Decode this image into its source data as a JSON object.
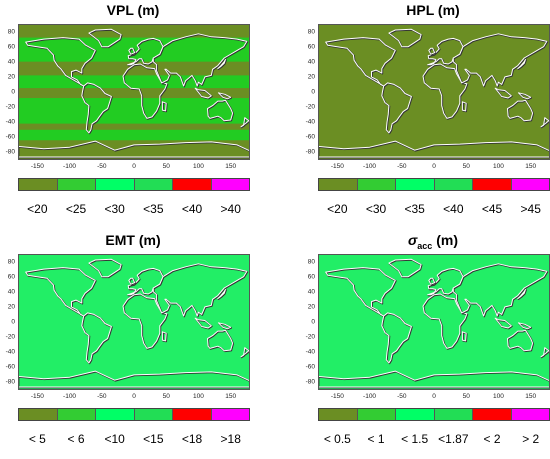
{
  "chart_data": [
    {
      "type": "heatmap",
      "title": "VPL (m)",
      "title_main": "VPL (m)",
      "title_sub": "",
      "title_unit": "",
      "xlim": [
        -180,
        180
      ],
      "ylim": [
        -90,
        90
      ],
      "xticks": [
        "-150",
        "-100",
        "-50",
        "0",
        "50",
        "100",
        "150"
      ],
      "yticks": [
        "80",
        "60",
        "40",
        "20",
        "0",
        "-20",
        "-40",
        "-60",
        "-80"
      ],
      "legend": {
        "labels": [
          "<20",
          "<25",
          "<30",
          "<35",
          "<40",
          ">40"
        ],
        "colors": [
          "#6b8e23",
          "#33cc33",
          "#00ff66",
          "#22dd55",
          "#ff0000",
          "#ff00ff"
        ]
      },
      "background_color": "#6b8e23",
      "bands": [
        {
          "lat_from": 90,
          "lat_to": 72,
          "color": "#6b8e23"
        },
        {
          "lat_from": 72,
          "lat_to": 40,
          "color": "#22cc22"
        },
        {
          "lat_from": 40,
          "lat_to": 22,
          "color": "#6b8e23"
        },
        {
          "lat_from": 22,
          "lat_to": 5,
          "color": "#22cc22"
        },
        {
          "lat_from": 5,
          "lat_to": -8,
          "color": "#6b8e23"
        },
        {
          "lat_from": -8,
          "lat_to": -42,
          "color": "#22cc22"
        },
        {
          "lat_from": -42,
          "lat_to": -50,
          "color": "#6b8e23"
        },
        {
          "lat_from": -50,
          "lat_to": -64,
          "color": "#22cc22"
        },
        {
          "lat_from": -64,
          "lat_to": -90,
          "color": "#6b8e23"
        }
      ]
    },
    {
      "type": "heatmap",
      "title": "HPL (m)",
      "title_main": "HPL (m)",
      "title_sub": "",
      "title_unit": "",
      "xlim": [
        -180,
        180
      ],
      "ylim": [
        -90,
        90
      ],
      "xticks": [
        "-150",
        "-100",
        "-50",
        "0",
        "50",
        "100",
        "150"
      ],
      "yticks": [
        "80",
        "60",
        "40",
        "20",
        "0",
        "-20",
        "-40",
        "-60",
        "-80"
      ],
      "legend": {
        "labels": [
          "<20",
          "<30",
          "<35",
          "<40",
          "<45",
          ">45"
        ],
        "colors": [
          "#6b8e23",
          "#33cc33",
          "#00ff66",
          "#22dd55",
          "#ff0000",
          "#ff00ff"
        ]
      },
      "background_color": "#6b8e23",
      "bands": [
        {
          "lat_from": 90,
          "lat_to": -90,
          "color": "#6b8e23"
        }
      ]
    },
    {
      "type": "heatmap",
      "title": "EMT (m)",
      "title_main": "EMT (m)",
      "title_sub": "",
      "title_unit": "",
      "xlim": [
        -180,
        180
      ],
      "ylim": [
        -90,
        90
      ],
      "xticks": [
        "-150",
        "-100",
        "-50",
        "0",
        "50",
        "100",
        "150"
      ],
      "yticks": [
        "80",
        "60",
        "40",
        "20",
        "0",
        "-20",
        "-40",
        "-60",
        "-80"
      ],
      "legend": {
        "labels": [
          "< 5",
          "< 6",
          "<10",
          "<15",
          "<18",
          ">18"
        ],
        "colors": [
          "#6b8e23",
          "#33cc33",
          "#00ff66",
          "#22dd55",
          "#ff0000",
          "#ff00ff"
        ]
      },
      "background_color": "#22ee66",
      "bands": [
        {
          "lat_from": 90,
          "lat_to": -90,
          "color": "#22ee66"
        }
      ]
    },
    {
      "type": "heatmap",
      "title": "σacc (m)",
      "title_main": "σ",
      "title_sub": "acc",
      "title_unit": " (m)",
      "xlim": [
        -180,
        180
      ],
      "ylim": [
        -90,
        90
      ],
      "xticks": [
        "-150",
        "-100",
        "-50",
        "0",
        "50",
        "100",
        "150"
      ],
      "yticks": [
        "80",
        "60",
        "40",
        "20",
        "0",
        "-20",
        "-40",
        "-60",
        "-80"
      ],
      "legend": {
        "labels": [
          "< 0.5",
          "< 1",
          "< 1.5",
          "<1.87",
          "< 2",
          "> 2"
        ],
        "colors": [
          "#6b8e23",
          "#33cc33",
          "#00ff66",
          "#22dd55",
          "#ff0000",
          "#ff00ff"
        ]
      },
      "background_color": "#22ee66",
      "bands": [
        {
          "lat_from": 90,
          "lat_to": -90,
          "color": "#22ee66"
        }
      ]
    }
  ]
}
